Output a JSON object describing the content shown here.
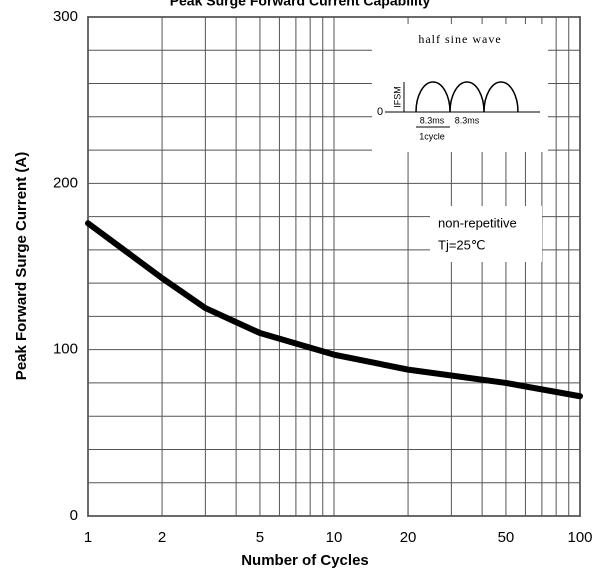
{
  "chart_data": {
    "type": "line",
    "title": "Peak Surge Forward Current Capability",
    "xlabel": "Number of Cycles",
    "ylabel": "Peak Forward Surge Current (A)",
    "x": [
      1,
      2,
      3,
      5,
      10,
      20,
      50,
      100
    ],
    "series": [
      {
        "name": "IFSM",
        "color": "#000000",
        "values": [
          176,
          143,
          125,
          110,
          97,
          88,
          80,
          72
        ]
      }
    ],
    "xlim": [
      1,
      100
    ],
    "xticks": [
      1,
      2,
      5,
      10,
      20,
      50,
      100
    ],
    "xlog": true,
    "xminor": [
      1,
      2,
      3,
      4,
      5,
      6,
      7,
      8,
      9,
      10,
      20,
      30,
      40,
      50,
      60,
      70,
      80,
      90,
      100
    ],
    "ylim": [
      0,
      300
    ],
    "yticks": [
      0,
      100,
      200,
      300
    ],
    "yminor": [
      0,
      20,
      40,
      60,
      80,
      100,
      120,
      140,
      160,
      180,
      200,
      220,
      240,
      260,
      280,
      300
    ],
    "grid": true,
    "annotations": {
      "inset_title": "half sine wave",
      "inset_ifsm": "IFSM",
      "inset_zero": "0",
      "inset_t1": "8.3ms",
      "inset_t2": "8.3ms",
      "inset_cycle": "1cycle",
      "note1": "non-repetitive",
      "note2": "Tj=25℃"
    }
  }
}
